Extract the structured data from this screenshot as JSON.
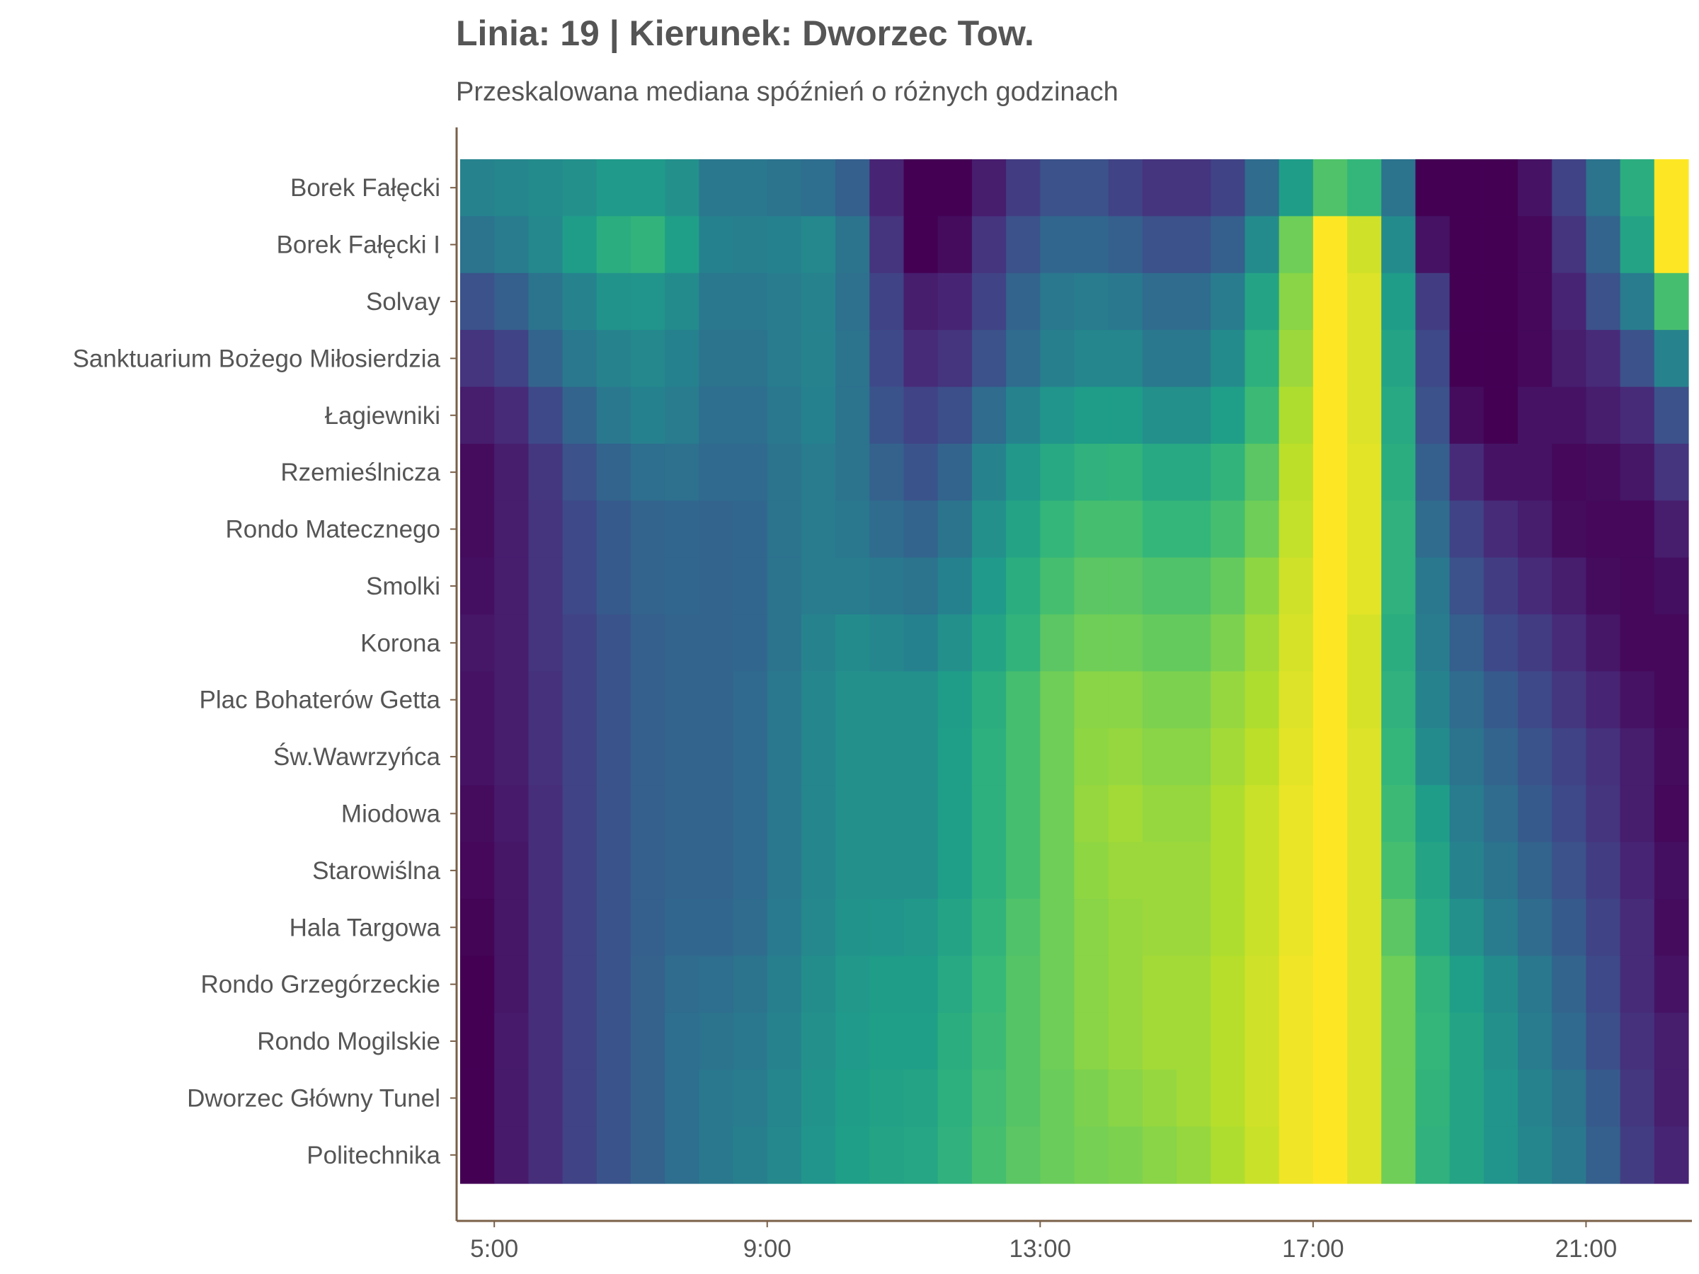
{
  "chart_data": {
    "type": "heatmap",
    "title": "Linia: 19 | Kierunek: Dworzec Tow.",
    "subtitle": "Przeskalowana mediana spóźnień o różnych godzinach",
    "xlabel": "",
    "ylabel": "",
    "colormap": "viridis",
    "value_range": [
      0,
      1
    ],
    "x": [
      4.75,
      5.25,
      5.75,
      6.25,
      6.75,
      7.25,
      7.75,
      8.25,
      8.75,
      9.25,
      9.75,
      10.25,
      10.75,
      11.25,
      11.75,
      12.25,
      12.75,
      13.25,
      13.75,
      14.25,
      14.75,
      15.25,
      15.75,
      16.25,
      16.75,
      17.25,
      17.75,
      18.25,
      18.75,
      19.25,
      19.75,
      20.25,
      20.75,
      21.25,
      21.75,
      22.25
    ],
    "x_ticks": [
      {
        "value": 5,
        "label": "5:00"
      },
      {
        "value": 9,
        "label": "9:00"
      },
      {
        "value": 13,
        "label": "13:00"
      },
      {
        "value": 17,
        "label": "17:00"
      },
      {
        "value": 21,
        "label": "21:00"
      }
    ],
    "xlim": [
      4.5,
      22.5
    ],
    "stops": [
      "Borek Fałęcki",
      "Borek Fałęcki I",
      "Solvay",
      "Sanktuarium Bożego Miłosierdzia",
      "Łagiewniki",
      "Rzemieślnicza",
      "Rondo Matecznego",
      "Smolki",
      "Korona",
      "Plac Bohaterów Getta",
      "Św.Wawrzyńca",
      "Miodowa",
      "Starowiślna",
      "Hala Targowa",
      "Rondo Grzegórzeckie",
      "Rondo Mogilskie",
      "Dworzec Główny Tunel",
      "Politechnika"
    ],
    "values": [
      [
        0.45,
        0.46,
        0.48,
        0.5,
        0.54,
        0.54,
        0.5,
        0.4,
        0.4,
        0.38,
        0.36,
        0.3,
        0.1,
        0.0,
        0.0,
        0.08,
        0.18,
        0.25,
        0.25,
        0.2,
        0.15,
        0.15,
        0.2,
        0.35,
        0.55,
        0.72,
        0.66,
        0.38,
        0.0,
        0.0,
        0.0,
        0.05,
        0.2,
        0.38,
        0.62,
        1.0
      ],
      [
        0.38,
        0.42,
        0.47,
        0.55,
        0.62,
        0.65,
        0.56,
        0.44,
        0.43,
        0.44,
        0.47,
        0.38,
        0.15,
        0.0,
        0.03,
        0.15,
        0.25,
        0.33,
        0.33,
        0.3,
        0.25,
        0.25,
        0.3,
        0.48,
        0.78,
        1.0,
        0.93,
        0.48,
        0.05,
        0.0,
        0.0,
        0.02,
        0.15,
        0.32,
        0.58,
        1.0
      ],
      [
        0.25,
        0.3,
        0.38,
        0.45,
        0.51,
        0.52,
        0.48,
        0.4,
        0.4,
        0.42,
        0.45,
        0.37,
        0.2,
        0.08,
        0.1,
        0.2,
        0.32,
        0.4,
        0.42,
        0.4,
        0.35,
        0.35,
        0.42,
        0.58,
        0.82,
        1.0,
        0.95,
        0.55,
        0.18,
        0.0,
        0.0,
        0.02,
        0.1,
        0.25,
        0.42,
        0.7
      ],
      [
        0.15,
        0.2,
        0.32,
        0.4,
        0.45,
        0.47,
        0.44,
        0.38,
        0.38,
        0.42,
        0.45,
        0.38,
        0.22,
        0.12,
        0.15,
        0.25,
        0.35,
        0.43,
        0.46,
        0.46,
        0.4,
        0.4,
        0.48,
        0.63,
        0.85,
        1.0,
        0.95,
        0.58,
        0.22,
        0.0,
        0.0,
        0.02,
        0.08,
        0.12,
        0.25,
        0.45
      ],
      [
        0.08,
        0.12,
        0.22,
        0.32,
        0.4,
        0.44,
        0.42,
        0.36,
        0.36,
        0.4,
        0.44,
        0.38,
        0.26,
        0.2,
        0.24,
        0.35,
        0.45,
        0.52,
        0.55,
        0.55,
        0.5,
        0.5,
        0.56,
        0.68,
        0.88,
        1.0,
        0.95,
        0.6,
        0.25,
        0.03,
        0.0,
        0.05,
        0.05,
        0.08,
        0.12,
        0.25
      ],
      [
        0.03,
        0.08,
        0.16,
        0.25,
        0.32,
        0.36,
        0.37,
        0.34,
        0.34,
        0.38,
        0.42,
        0.38,
        0.31,
        0.26,
        0.32,
        0.45,
        0.53,
        0.6,
        0.64,
        0.65,
        0.6,
        0.6,
        0.65,
        0.74,
        0.9,
        1.0,
        0.96,
        0.62,
        0.3,
        0.12,
        0.05,
        0.05,
        0.02,
        0.03,
        0.06,
        0.15
      ],
      [
        0.03,
        0.08,
        0.15,
        0.22,
        0.28,
        0.32,
        0.33,
        0.32,
        0.33,
        0.38,
        0.42,
        0.4,
        0.35,
        0.32,
        0.38,
        0.5,
        0.58,
        0.66,
        0.7,
        0.7,
        0.66,
        0.66,
        0.7,
        0.78,
        0.91,
        1.0,
        0.96,
        0.64,
        0.35,
        0.2,
        0.12,
        0.08,
        0.03,
        0.02,
        0.02,
        0.08
      ],
      [
        0.04,
        0.08,
        0.15,
        0.22,
        0.28,
        0.32,
        0.33,
        0.32,
        0.33,
        0.38,
        0.42,
        0.42,
        0.4,
        0.38,
        0.44,
        0.54,
        0.62,
        0.7,
        0.74,
        0.74,
        0.72,
        0.72,
        0.76,
        0.83,
        0.93,
        1.0,
        0.96,
        0.64,
        0.4,
        0.25,
        0.18,
        0.12,
        0.08,
        0.03,
        0.02,
        0.04
      ],
      [
        0.06,
        0.08,
        0.15,
        0.2,
        0.26,
        0.3,
        0.32,
        0.32,
        0.33,
        0.38,
        0.45,
        0.48,
        0.46,
        0.44,
        0.5,
        0.58,
        0.65,
        0.74,
        0.78,
        0.78,
        0.76,
        0.76,
        0.8,
        0.86,
        0.94,
        1.0,
        0.94,
        0.62,
        0.42,
        0.3,
        0.22,
        0.18,
        0.12,
        0.06,
        0.02,
        0.02
      ],
      [
        0.05,
        0.08,
        0.14,
        0.2,
        0.26,
        0.3,
        0.32,
        0.32,
        0.34,
        0.4,
        0.46,
        0.5,
        0.5,
        0.5,
        0.55,
        0.62,
        0.7,
        0.78,
        0.82,
        0.82,
        0.8,
        0.8,
        0.84,
        0.88,
        0.95,
        1.0,
        0.94,
        0.64,
        0.45,
        0.35,
        0.28,
        0.22,
        0.16,
        0.1,
        0.05,
        0.02
      ],
      [
        0.05,
        0.08,
        0.14,
        0.2,
        0.26,
        0.3,
        0.32,
        0.32,
        0.34,
        0.4,
        0.46,
        0.5,
        0.5,
        0.5,
        0.56,
        0.63,
        0.7,
        0.78,
        0.83,
        0.84,
        0.82,
        0.82,
        0.86,
        0.9,
        0.96,
        1.0,
        0.95,
        0.66,
        0.48,
        0.38,
        0.32,
        0.26,
        0.2,
        0.14,
        0.08,
        0.03
      ],
      [
        0.03,
        0.07,
        0.13,
        0.2,
        0.26,
        0.3,
        0.32,
        0.32,
        0.34,
        0.4,
        0.46,
        0.5,
        0.5,
        0.5,
        0.56,
        0.63,
        0.7,
        0.78,
        0.84,
        0.86,
        0.84,
        0.84,
        0.88,
        0.92,
        0.97,
        1.0,
        0.95,
        0.68,
        0.55,
        0.42,
        0.35,
        0.28,
        0.22,
        0.15,
        0.08,
        0.02
      ],
      [
        0.02,
        0.06,
        0.13,
        0.2,
        0.26,
        0.3,
        0.32,
        0.32,
        0.34,
        0.4,
        0.46,
        0.5,
        0.5,
        0.5,
        0.56,
        0.63,
        0.7,
        0.78,
        0.83,
        0.85,
        0.85,
        0.85,
        0.88,
        0.92,
        0.97,
        1.0,
        0.95,
        0.7,
        0.58,
        0.45,
        0.38,
        0.32,
        0.25,
        0.18,
        0.1,
        0.04
      ],
      [
        0.01,
        0.06,
        0.13,
        0.2,
        0.26,
        0.3,
        0.33,
        0.33,
        0.35,
        0.41,
        0.47,
        0.51,
        0.52,
        0.53,
        0.58,
        0.65,
        0.72,
        0.78,
        0.82,
        0.84,
        0.85,
        0.85,
        0.88,
        0.92,
        0.97,
        1.0,
        0.95,
        0.74,
        0.6,
        0.5,
        0.42,
        0.35,
        0.28,
        0.2,
        0.12,
        0.03
      ],
      [
        0.0,
        0.06,
        0.13,
        0.2,
        0.26,
        0.31,
        0.35,
        0.36,
        0.38,
        0.43,
        0.49,
        0.53,
        0.55,
        0.55,
        0.6,
        0.67,
        0.73,
        0.78,
        0.82,
        0.84,
        0.86,
        0.86,
        0.89,
        0.93,
        0.98,
        1.0,
        0.95,
        0.78,
        0.65,
        0.56,
        0.48,
        0.4,
        0.32,
        0.22,
        0.12,
        0.05
      ],
      [
        0.0,
        0.07,
        0.13,
        0.2,
        0.26,
        0.31,
        0.36,
        0.38,
        0.4,
        0.45,
        0.5,
        0.54,
        0.56,
        0.56,
        0.62,
        0.68,
        0.73,
        0.78,
        0.82,
        0.84,
        0.86,
        0.86,
        0.89,
        0.93,
        0.98,
        1.0,
        0.95,
        0.78,
        0.66,
        0.58,
        0.5,
        0.42,
        0.34,
        0.24,
        0.14,
        0.08
      ],
      [
        0.0,
        0.07,
        0.13,
        0.2,
        0.26,
        0.31,
        0.36,
        0.4,
        0.42,
        0.46,
        0.51,
        0.55,
        0.57,
        0.58,
        0.63,
        0.69,
        0.73,
        0.77,
        0.8,
        0.82,
        0.84,
        0.86,
        0.89,
        0.93,
        0.98,
        1.0,
        0.95,
        0.78,
        0.65,
        0.58,
        0.52,
        0.45,
        0.38,
        0.28,
        0.16,
        0.08
      ],
      [
        0.0,
        0.07,
        0.13,
        0.2,
        0.26,
        0.31,
        0.36,
        0.4,
        0.43,
        0.47,
        0.52,
        0.56,
        0.58,
        0.59,
        0.64,
        0.7,
        0.74,
        0.77,
        0.79,
        0.8,
        0.82,
        0.84,
        0.88,
        0.92,
        0.98,
        1.0,
        0.95,
        0.78,
        0.64,
        0.58,
        0.52,
        0.46,
        0.4,
        0.3,
        0.18,
        0.1
      ]
    ]
  }
}
